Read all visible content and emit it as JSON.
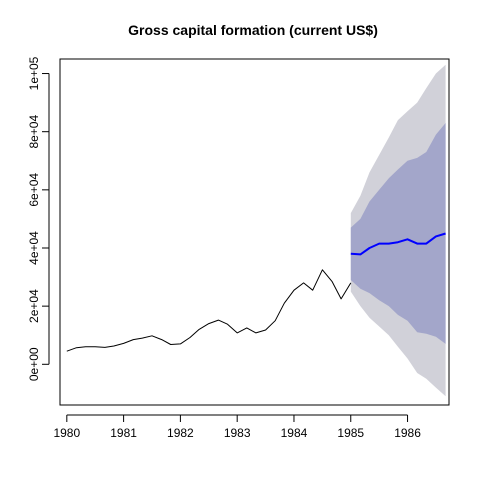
{
  "chart_data": {
    "type": "line",
    "title": "Gross capital formation (current US$)",
    "xlabel": "",
    "ylabel": "",
    "xlim": [
      1979.88,
      1986.73
    ],
    "ylim": [
      -14000,
      105000
    ],
    "x_ticks": [
      1980,
      1981,
      1982,
      1983,
      1984,
      1985,
      1986
    ],
    "x_tick_labels": [
      "1980",
      "1981",
      "1982",
      "1983",
      "1984",
      "1985",
      "1986"
    ],
    "y_ticks": [
      0,
      20000,
      40000,
      60000,
      80000,
      100000
    ],
    "y_tick_labels": [
      "0e+00",
      "2e+04",
      "4e+04",
      "6e+04",
      "8e+04",
      "1e+05"
    ],
    "grid": false,
    "series": [
      {
        "role": "observed",
        "color": "#000000",
        "x": [
          1980.0,
          1980.17,
          1980.33,
          1980.5,
          1980.67,
          1980.83,
          1981.0,
          1981.17,
          1981.33,
          1981.5,
          1981.67,
          1981.83,
          1982.0,
          1982.17,
          1982.33,
          1982.5,
          1982.67,
          1982.83,
          1983.0,
          1983.17,
          1983.33,
          1983.5,
          1983.67,
          1983.83,
          1984.0,
          1984.17,
          1984.33,
          1984.5,
          1984.67,
          1984.83,
          1985.0
        ],
        "y": [
          4500,
          5700,
          6000,
          6000,
          5800,
          6300,
          7200,
          8500,
          9000,
          9800,
          8500,
          6800,
          7000,
          9200,
          12000,
          14000,
          15200,
          13800,
          10800,
          12500,
          10800,
          11800,
          15000,
          21000,
          25500,
          28000,
          25500,
          32500,
          28500,
          22500,
          28000
        ]
      },
      {
        "role": "forecast",
        "color": "#0000ff",
        "x": [
          1985.0,
          1985.17,
          1985.33,
          1985.5,
          1985.67,
          1985.83,
          1986.0,
          1986.17,
          1986.33,
          1986.5,
          1986.67
        ],
        "y": [
          38000,
          37800,
          40000,
          41500,
          41500,
          42000,
          43000,
          41500,
          41500,
          44000,
          45000
        ]
      }
    ],
    "intervals": [
      {
        "level": "outer",
        "color": "#d1d1d9",
        "x": [
          1985.0,
          1985.17,
          1985.33,
          1985.5,
          1985.67,
          1985.83,
          1986.0,
          1986.17,
          1986.33,
          1986.5,
          1986.67
        ],
        "lower": [
          25000,
          20000,
          16000,
          13000,
          10000,
          6000,
          2000,
          -3000,
          -5000,
          -8000,
          -11000
        ],
        "upper": [
          52000,
          58000,
          66000,
          72000,
          78000,
          84000,
          87000,
          90000,
          95000,
          100000,
          103000
        ]
      },
      {
        "level": "inner",
        "color": "#a3a6ca",
        "x": [
          1985.0,
          1985.17,
          1985.33,
          1985.5,
          1985.67,
          1985.83,
          1986.0,
          1986.17,
          1986.33,
          1986.5,
          1986.67
        ],
        "lower": [
          29000,
          26000,
          24500,
          22000,
          20000,
          17000,
          15000,
          11000,
          10500,
          9500,
          7000
        ],
        "upper": [
          47000,
          50000,
          56000,
          60000,
          64000,
          67000,
          70000,
          71000,
          73000,
          79000,
          83000
        ]
      }
    ]
  }
}
